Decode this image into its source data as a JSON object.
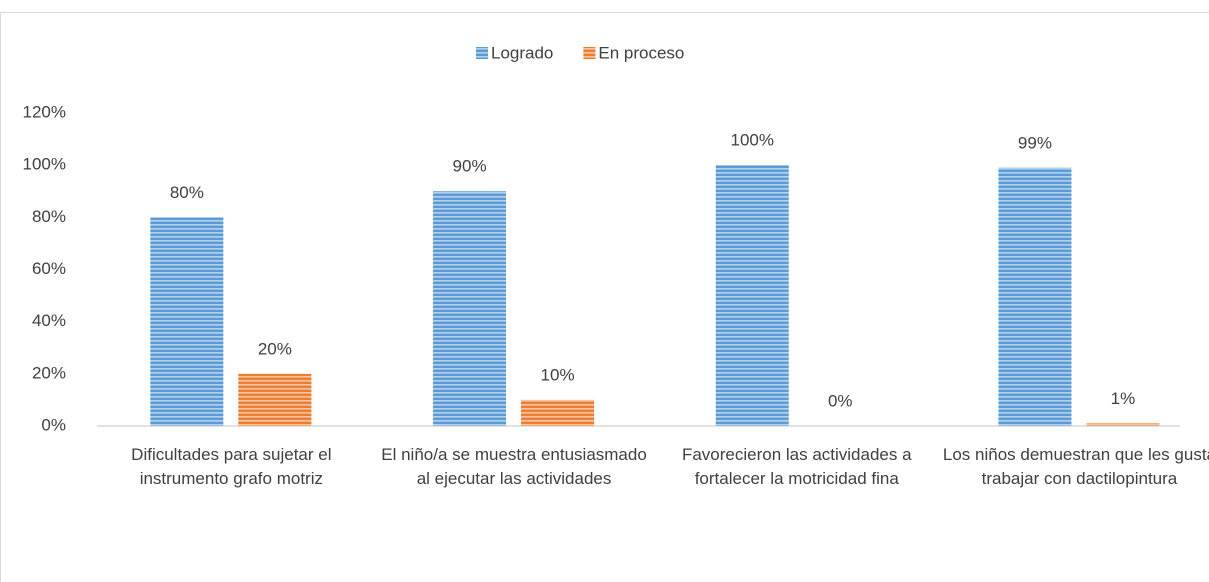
{
  "chart_data": {
    "type": "bar",
    "categories": [
      "Dificultades para sujetar el instrumento grafo motriz",
      "El niño/a se muestra entusiasmado al ejecutar las actividades",
      "Favorecieron las actividades a fortalecer la motricidad fina",
      "Los niños demuestran que les gusta trabajar con dactilopintura"
    ],
    "series": [
      {
        "name": "Logrado",
        "color": "#5b9bd5",
        "values": [
          80,
          90,
          100,
          99
        ],
        "value_labels": [
          "80%",
          "90%",
          "100%",
          "99%"
        ]
      },
      {
        "name": "En proceso",
        "color": "#ed7d31",
        "values": [
          20,
          10,
          0,
          1
        ],
        "value_labels": [
          "20%",
          "10%",
          "0%",
          "1%"
        ]
      }
    ],
    "ylim": [
      0,
      120
    ],
    "yticks": [
      {
        "value": 0,
        "label": "0%"
      },
      {
        "value": 20,
        "label": "20%"
      },
      {
        "value": 40,
        "label": "40%"
      },
      {
        "value": 60,
        "label": "60%"
      },
      {
        "value": 80,
        "label": "80%"
      },
      {
        "value": 100,
        "label": "100%"
      },
      {
        "value": 120,
        "label": "120%"
      }
    ],
    "grid": false,
    "legend": "top"
  }
}
